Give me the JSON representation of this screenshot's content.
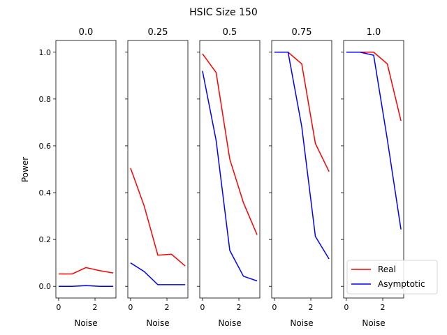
{
  "chart_data": {
    "type": "line",
    "title": "HSIC Size 150",
    "ylabel": "Power",
    "xlabel": "Noise",
    "xlim": [
      -0.15,
      3.15
    ],
    "ylim": [
      -0.05,
      1.05
    ],
    "xticks": [
      0,
      2
    ],
    "yticks": [
      0.0,
      0.2,
      0.4,
      0.6,
      0.8,
      1.0
    ],
    "x": [
      0,
      0.75,
      1.5,
      2.25,
      3.0
    ],
    "series_names": [
      "Real",
      "Asymptotic"
    ],
    "colors": {
      "Real": "#ff0000",
      "Asymptotic": "#0000ff"
    },
    "legend": {
      "location": "lower-right",
      "entries": [
        "Real",
        "Asymptotic"
      ]
    },
    "grid": false,
    "panels": [
      {
        "title": "0.0",
        "series": [
          {
            "name": "Real",
            "values": [
              0.053,
              0.053,
              0.08,
              0.067,
              0.057
            ]
          },
          {
            "name": "Asymptotic",
            "values": [
              0.0,
              0.0,
              0.003,
              0.0,
              0.0
            ]
          }
        ]
      },
      {
        "title": "0.25",
        "series": [
          {
            "name": "Real",
            "values": [
              0.505,
              0.343,
              0.133,
              0.137,
              0.087
            ]
          },
          {
            "name": "Asymptotic",
            "values": [
              0.1,
              0.063,
              0.007,
              0.007,
              0.007
            ]
          }
        ]
      },
      {
        "title": "0.5",
        "series": [
          {
            "name": "Real",
            "values": [
              0.993,
              0.913,
              0.543,
              0.357,
              0.22
            ]
          },
          {
            "name": "Asymptotic",
            "values": [
              0.92,
              0.623,
              0.153,
              0.043,
              0.023
            ]
          }
        ]
      },
      {
        "title": "0.75",
        "series": [
          {
            "name": "Real",
            "values": [
              1.0,
              1.0,
              0.95,
              0.61,
              0.49
            ]
          },
          {
            "name": "Asymptotic",
            "values": [
              1.0,
              1.0,
              0.683,
              0.213,
              0.117
            ]
          }
        ]
      },
      {
        "title": "1.0",
        "series": [
          {
            "name": "Real",
            "values": [
              1.0,
              1.0,
              1.0,
              0.95,
              0.707
            ]
          },
          {
            "name": "Asymptotic",
            "values": [
              1.0,
              1.0,
              0.987,
              0.627,
              0.243
            ]
          }
        ]
      }
    ]
  }
}
